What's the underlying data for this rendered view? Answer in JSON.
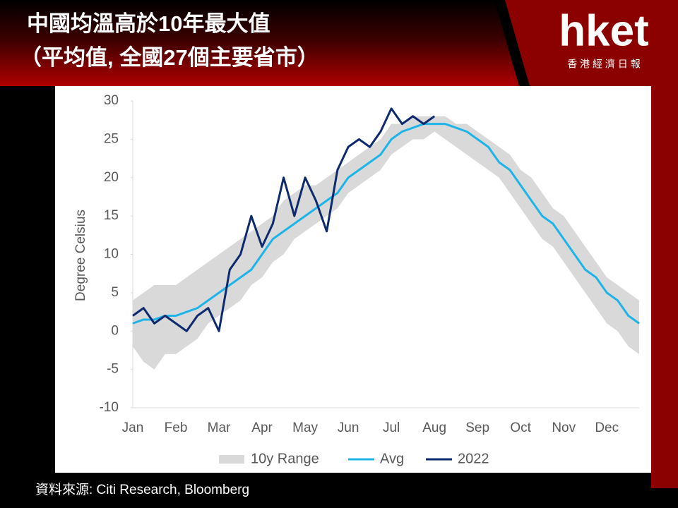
{
  "header": {
    "title_line1": "中國均溫高於10年最大值",
    "title_line2": "（平均值, 全國27個主要省市）"
  },
  "logo": {
    "name": "hket",
    "subtitle": "香 港 經 濟 日 報"
  },
  "source": "資料來源: Citi Research, Bloomberg",
  "chart_data": {
    "type": "line",
    "ylabel": "Degree Celsius",
    "categories": [
      "Jan",
      null,
      null,
      null,
      "Feb",
      null,
      null,
      null,
      "Mar",
      null,
      null,
      null,
      "Apr",
      null,
      null,
      null,
      "May",
      null,
      null,
      null,
      "Jun",
      null,
      null,
      null,
      "Jul",
      null,
      null,
      null,
      "Aug",
      null,
      null,
      null,
      "Sep",
      null,
      null,
      null,
      "Oct",
      null,
      null,
      null,
      "Nov",
      null,
      null,
      null,
      "Dec",
      null,
      null,
      null
    ],
    "ylim": [
      -10,
      30
    ],
    "yticks": [
      -10,
      -5,
      0,
      5,
      10,
      15,
      20,
      25,
      30
    ],
    "legend": "bottom",
    "series": [
      {
        "name": "10y Range",
        "color": "#d9d9d9",
        "kind": "band",
        "low": [
          -2,
          -4,
          -5,
          -3,
          -3,
          -2,
          -1,
          1,
          2,
          3,
          4,
          6,
          7,
          9,
          10,
          12,
          13,
          14,
          15,
          16,
          18,
          19,
          20,
          21,
          23,
          24,
          25,
          25,
          26,
          25,
          24,
          23,
          22,
          21,
          20,
          18,
          16,
          14,
          12,
          11,
          9,
          7,
          5,
          3,
          1,
          0,
          -2,
          -3
        ],
        "high": [
          4,
          5,
          6,
          6,
          6,
          7,
          8,
          9,
          10,
          11,
          12,
          13,
          14,
          15,
          17,
          18,
          19,
          19,
          20,
          21,
          22,
          23,
          24,
          25,
          27,
          27,
          28,
          28,
          28,
          28,
          27,
          27,
          26,
          25,
          24,
          23,
          21,
          20,
          18,
          16,
          15,
          13,
          11,
          9,
          7,
          6,
          5,
          4
        ]
      },
      {
        "name": "Avg",
        "color": "#1fb4e8",
        "values": [
          1,
          1.5,
          1.5,
          2,
          2,
          2.5,
          3,
          4,
          5,
          6,
          7,
          8,
          10,
          12,
          13,
          14,
          15,
          16,
          17,
          18,
          20,
          21,
          22,
          23,
          25,
          26,
          26.5,
          27,
          27,
          27,
          26.5,
          26,
          25,
          24,
          22,
          21,
          19,
          17,
          15,
          14,
          12,
          10,
          8,
          7,
          5,
          4,
          2,
          1
        ]
      },
      {
        "name": "2022",
        "color": "#0d2a6e",
        "values": [
          2,
          3,
          1,
          2,
          1,
          0,
          2,
          3,
          0,
          8,
          10,
          15,
          11,
          14,
          20,
          15,
          20,
          17,
          13,
          21,
          24,
          25,
          24,
          26,
          29,
          27,
          28,
          27,
          28,
          null,
          null,
          null,
          null,
          null,
          null,
          null,
          null,
          null,
          null,
          null,
          null,
          null,
          null,
          null,
          null,
          null,
          null,
          null
        ]
      }
    ]
  }
}
